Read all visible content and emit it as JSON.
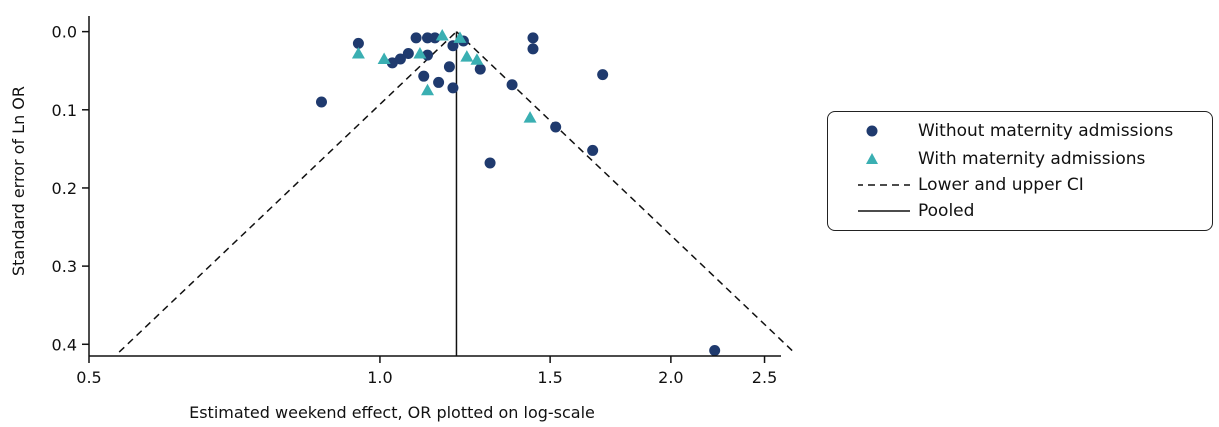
{
  "colors": {
    "without": "#1f3a6e",
    "with": "#3aafb2",
    "lines": "#111111"
  },
  "chart_data": {
    "type": "scatter",
    "subtype": "funnel plot",
    "title": "",
    "xlabel": "Estimated weekend effect, OR plotted on log-scale",
    "ylabel": "Standard error of Ln OR",
    "x_scale": "log",
    "xlim": [
      0.5,
      2.6
    ],
    "ylim": [
      0.415,
      -0.02
    ],
    "y_inverted": true,
    "xticks": [
      0.5,
      1.0,
      1.5,
      2.0,
      2.5
    ],
    "xtick_labels": [
      "0.5",
      "1.0",
      "1.5",
      "2.0",
      "2.5"
    ],
    "yticks": [
      0.0,
      0.1,
      0.2,
      0.3,
      0.4
    ],
    "ytick_labels": [
      "0.0",
      "0.1",
      "0.2",
      "0.3",
      "0.4"
    ],
    "grid": false,
    "legend_position": "right",
    "pooled_or": 1.2,
    "ci_apex_se": 0.0,
    "ci_bottom_se": 0.41,
    "series": [
      {
        "name": "Without maternity admissions",
        "marker": "circle",
        "points": [
          {
            "x": 0.87,
            "y": 0.09
          },
          {
            "x": 0.95,
            "y": 0.015
          },
          {
            "x": 1.03,
            "y": 0.04
          },
          {
            "x": 1.05,
            "y": 0.035
          },
          {
            "x": 1.07,
            "y": 0.028
          },
          {
            "x": 1.09,
            "y": 0.008
          },
          {
            "x": 1.11,
            "y": 0.057
          },
          {
            "x": 1.12,
            "y": 0.03
          },
          {
            "x": 1.12,
            "y": 0.008
          },
          {
            "x": 1.14,
            "y": 0.008
          },
          {
            "x": 1.15,
            "y": 0.065
          },
          {
            "x": 1.18,
            "y": 0.045
          },
          {
            "x": 1.19,
            "y": 0.072
          },
          {
            "x": 1.19,
            "y": 0.018
          },
          {
            "x": 1.22,
            "y": 0.012
          },
          {
            "x": 1.27,
            "y": 0.048
          },
          {
            "x": 1.3,
            "y": 0.168
          },
          {
            "x": 1.37,
            "y": 0.068
          },
          {
            "x": 1.44,
            "y": 0.008
          },
          {
            "x": 1.44,
            "y": 0.022
          },
          {
            "x": 1.52,
            "y": 0.122
          },
          {
            "x": 1.66,
            "y": 0.152
          },
          {
            "x": 1.7,
            "y": 0.055
          },
          {
            "x": 2.22,
            "y": 0.408
          }
        ]
      },
      {
        "name": "With maternity admissions",
        "marker": "triangle",
        "points": [
          {
            "x": 0.95,
            "y": 0.028
          },
          {
            "x": 1.01,
            "y": 0.035
          },
          {
            "x": 1.1,
            "y": 0.028
          },
          {
            "x": 1.12,
            "y": 0.075
          },
          {
            "x": 1.16,
            "y": 0.005
          },
          {
            "x": 1.21,
            "y": 0.008
          },
          {
            "x": 1.23,
            "y": 0.032
          },
          {
            "x": 1.26,
            "y": 0.036
          },
          {
            "x": 1.43,
            "y": 0.11
          }
        ]
      }
    ],
    "legend": [
      {
        "label": "Without maternity admissions",
        "symbol": "circle"
      },
      {
        "label": "With maternity admissions",
        "symbol": "triangle"
      },
      {
        "label": "Lower and upper CI",
        "symbol": "dashed-line"
      },
      {
        "label": "Pooled",
        "symbol": "solid-line"
      }
    ]
  }
}
